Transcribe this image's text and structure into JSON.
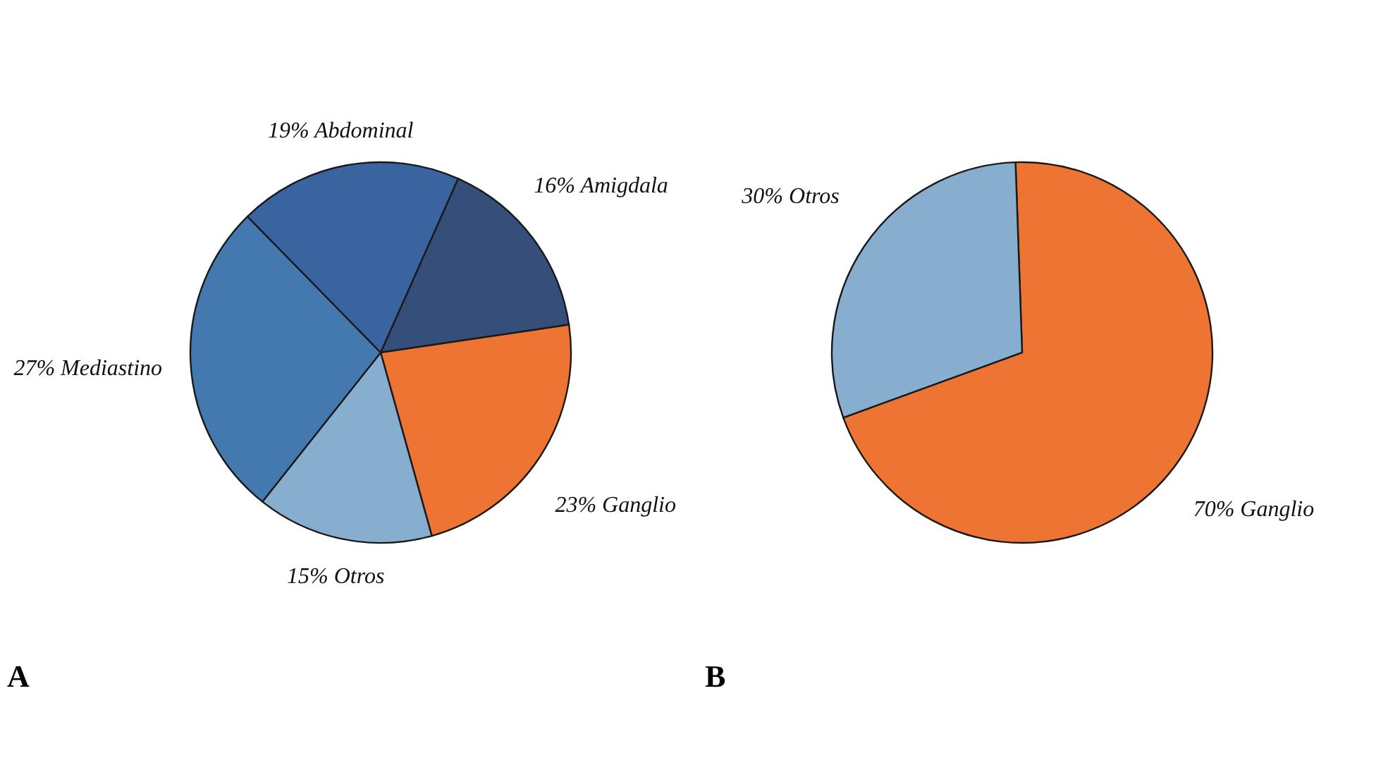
{
  "chart_data": [
    {
      "type": "pie",
      "annotations": [
        "A"
      ],
      "categories": [
        "Amigdala",
        "Ganglio",
        "Otros",
        "Mediastino",
        "Abdominal"
      ],
      "values": [
        16,
        23,
        15,
        27,
        19
      ],
      "value_labels": [
        "16%",
        "23%",
        "15%",
        "27%",
        "19%"
      ],
      "colors": [
        "#354f7a",
        "#ed7432",
        "#87adcf",
        "#4479b0",
        "#3a64a0"
      ]
    },
    {
      "type": "pie",
      "annotations": [
        "B"
      ],
      "categories": [
        "Ganglio",
        "Otros"
      ],
      "values": [
        70,
        30
      ],
      "value_labels": [
        "70%",
        "30%"
      ],
      "colors": [
        "#ed7432",
        "#87adcf"
      ]
    }
  ]
}
